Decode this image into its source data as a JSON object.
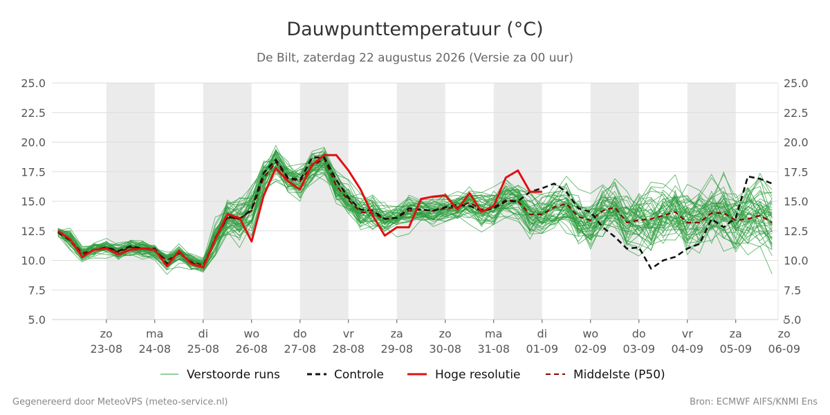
{
  "chart_data": {
    "type": "line",
    "title": "Dauwpunttemperatuur (°C)",
    "subtitle": "De Bilt, zaterdag 22 augustus 2026 (Versie za 00 uur)",
    "ylim": [
      5.0,
      25.0
    ],
    "yticks": [
      "5.0",
      "7.5",
      "10.0",
      "12.5",
      "15.0",
      "17.5",
      "20.0",
      "22.5",
      "25.0"
    ],
    "xlim": [
      -3.0,
      357.0
    ],
    "x_unit": "hours since 2026-08-22 00:00",
    "xticks": [
      {
        "day": "zo",
        "date": "23-08"
      },
      {
        "day": "ma",
        "date": "24-08"
      },
      {
        "day": "di",
        "date": "25-08"
      },
      {
        "day": "wo",
        "date": "26-08"
      },
      {
        "day": "do",
        "date": "27-08"
      },
      {
        "day": "vr",
        "date": "28-08"
      },
      {
        "day": "za",
        "date": "29-08"
      },
      {
        "day": "zo",
        "date": "30-08"
      },
      {
        "day": "ma",
        "date": "31-08"
      },
      {
        "day": "di",
        "date": "01-09"
      },
      {
        "day": "wo",
        "date": "02-09"
      },
      {
        "day": "do",
        "date": "03-09"
      },
      {
        "day": "vr",
        "date": "04-09"
      },
      {
        "day": "za",
        "date": "05-09"
      },
      {
        "day": "zo",
        "date": "06-09"
      }
    ],
    "grid": true,
    "legend_position": "bottom",
    "colors": {
      "ensemble": "#2e9e3e",
      "control": "#111111",
      "hires": "#e01010",
      "median": "#8b0000",
      "shade": "#ebebeb",
      "grid": "#dddddd"
    },
    "series": [
      {
        "name": "Controle",
        "style": "dashed",
        "x": [
          0,
          6,
          12,
          18,
          24,
          30,
          36,
          42,
          48,
          54,
          60,
          66,
          72,
          78,
          84,
          90,
          96,
          102,
          108,
          114,
          120,
          126,
          132,
          138,
          144,
          150,
          156,
          162,
          168,
          174,
          180,
          186,
          192,
          198,
          204,
          210,
          216,
          222,
          228,
          234,
          240,
          246,
          252,
          258,
          264,
          270,
          276,
          282,
          288,
          294,
          300,
          306,
          312,
          318,
          324,
          330,
          336,
          342,
          348,
          354
        ],
        "y": [
          12.4,
          11.7,
          10.4,
          10.9,
          11.1,
          10.8,
          11.2,
          11.0,
          11.0,
          9.7,
          10.7,
          9.8,
          9.4,
          11.9,
          13.7,
          13.5,
          14.3,
          17.4,
          18.5,
          17.0,
          16.8,
          18.7,
          18.7,
          16.8,
          15.3,
          14.3,
          14.2,
          13.5,
          13.6,
          14.4,
          14.3,
          14.2,
          14.5,
          14.7,
          14.6,
          14.2,
          14.4,
          15.0,
          15.0,
          15.8,
          16.1,
          16.5,
          15.8,
          14.4,
          14.1,
          12.8,
          12.0,
          11.0,
          11.1,
          9.3,
          10.0,
          10.3,
          11.0,
          11.4,
          13.5,
          12.8,
          13.6,
          17.1,
          16.9,
          16.5
        ]
      },
      {
        "name": "Hoge resolutie",
        "style": "solid",
        "x": [
          0,
          6,
          12,
          18,
          24,
          30,
          36,
          42,
          48,
          54,
          60,
          66,
          72,
          78,
          84,
          90,
          96,
          102,
          108,
          114,
          120,
          126,
          132,
          138,
          144,
          150,
          156,
          162,
          168,
          174,
          180,
          186,
          192,
          198,
          204,
          210,
          216,
          222,
          228,
          234,
          240
        ],
        "y": [
          12.5,
          11.8,
          10.3,
          10.9,
          11.0,
          10.5,
          10.9,
          11.0,
          10.9,
          9.5,
          10.8,
          9.7,
          9.4,
          11.8,
          13.9,
          13.6,
          11.6,
          15.5,
          17.8,
          16.7,
          16.0,
          18.1,
          18.9,
          18.9,
          17.6,
          16.0,
          13.8,
          12.1,
          12.8,
          12.8,
          15.2,
          15.4,
          15.5,
          14.3,
          15.7,
          14.1,
          14.6,
          17.0,
          17.6,
          15.8,
          15.8
        ]
      },
      {
        "name": "Middelste (P50)",
        "style": "dashed",
        "x": [
          0,
          6,
          12,
          18,
          24,
          30,
          36,
          42,
          48,
          54,
          60,
          66,
          72,
          78,
          84,
          90,
          96,
          102,
          108,
          114,
          120,
          126,
          132,
          138,
          144,
          150,
          156,
          162,
          168,
          174,
          180,
          186,
          192,
          198,
          204,
          210,
          216,
          222,
          228,
          234,
          240,
          246,
          252,
          258,
          264,
          270,
          276,
          282,
          288,
          294,
          300,
          306,
          312,
          318,
          324,
          330,
          336,
          342,
          348,
          354
        ],
        "y": [
          12.4,
          11.8,
          10.6,
          10.9,
          11.1,
          10.7,
          11.1,
          11.0,
          10.8,
          10.0,
          10.6,
          9.9,
          9.6,
          11.8,
          13.6,
          13.5,
          14.2,
          17.0,
          18.3,
          16.9,
          16.7,
          18.0,
          18.6,
          16.3,
          15.1,
          14.1,
          14.0,
          13.5,
          13.6,
          14.2,
          14.3,
          14.2,
          14.4,
          14.5,
          14.9,
          14.3,
          14.5,
          15.1,
          15.0,
          13.9,
          13.9,
          14.5,
          14.8,
          13.7,
          13.4,
          14.2,
          14.5,
          13.2,
          13.4,
          13.5,
          13.8,
          14.1,
          13.2,
          13.2,
          14.0,
          14.0,
          13.4,
          13.5,
          13.8,
          13.2
        ]
      },
      {
        "name": "Verstoorde runs",
        "style": "ensemble",
        "member_count": 50,
        "x_step": 6,
        "spread_hint": "member values drawn per time step as P50 ± spread"
      }
    ],
    "ensemble_spread": [
      0.4,
      0.9,
      0.7,
      0.7,
      0.8,
      1.0,
      0.8,
      0.8,
      0.7,
      1.0,
      0.8,
      0.8,
      0.6,
      1.6,
      1.8,
      2.1,
      2.2,
      2.0,
      1.5,
      1.5,
      1.8,
      1.6,
      1.4,
      1.6,
      1.8,
      1.8,
      1.6,
      1.2,
      1.2,
      1.4,
      1.2,
      1.3,
      1.3,
      1.4,
      1.6,
      1.6,
      1.6,
      1.7,
      1.7,
      2.0,
      1.9,
      2.0,
      2.1,
      2.1,
      2.3,
      2.6,
      2.5,
      2.8,
      2.9,
      3.0,
      2.9,
      2.9,
      3.1,
      3.2,
      3.2,
      3.3,
      3.0,
      3.0,
      3.1,
      3.1
    ]
  },
  "legend": {
    "ensemble_label": "Verstoorde runs",
    "control_label": "Controle",
    "hires_label": "Hoge resolutie",
    "median_label": "Middelste (P50)"
  },
  "footer": {
    "left": "Gegenereerd door MeteoVPS (meteo-service.nl)",
    "right": "Bron: ECMWF AIFS/KNMI Ens"
  }
}
